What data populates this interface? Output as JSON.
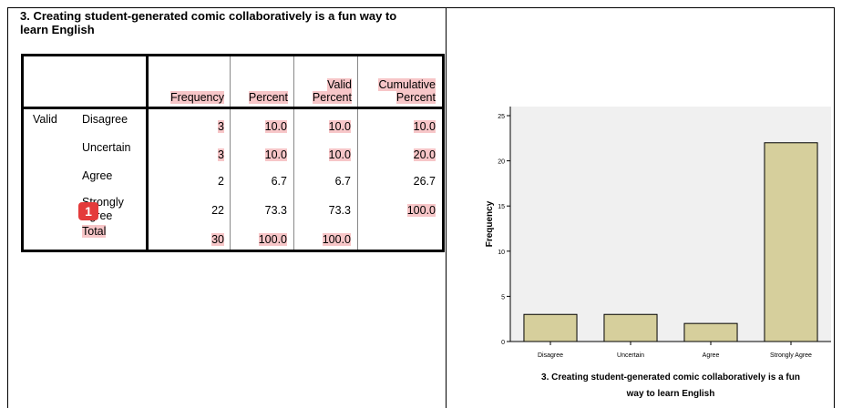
{
  "table": {
    "title_line1": "3. Creating student-generated comic collaboratively is a fun way to",
    "title_line2": "learn English",
    "headers": {
      "frequency": "Frequency",
      "percent": "Percent",
      "valid_percent_l1": "Valid",
      "valid_percent_l2": "Percent",
      "cumulative_l1": "Cumulative",
      "cumulative_l2": "Percent"
    },
    "group_label": "Valid",
    "rows": [
      {
        "label": "Disagree",
        "frequency": "3",
        "percent": "10.0",
        "valid": "10.0",
        "cumulative": "10.0"
      },
      {
        "label": "Uncertain",
        "frequency": "3",
        "percent": "10.0",
        "valid": "10.0",
        "cumulative": "20.0"
      },
      {
        "label": "Agree",
        "frequency": "2",
        "percent": "6.7",
        "valid": "6.7",
        "cumulative": "26.7"
      },
      {
        "label_l1": "Strongly",
        "label_l2": "Agree",
        "frequency": "22",
        "percent": "73.3",
        "valid": "73.3",
        "cumulative": "100.0"
      },
      {
        "label": "Total",
        "frequency": "30",
        "percent": "100.0",
        "valid": "100.0",
        "cumulative": ""
      }
    ],
    "highlight_color": "#f7c6c8"
  },
  "badge": {
    "label": "1",
    "color": "#e43b3b"
  },
  "chart_data": {
    "type": "bar",
    "categories": [
      "Disagree",
      "Uncertain",
      "Agree",
      "Strongly Agree"
    ],
    "values": [
      3,
      3,
      2,
      22
    ],
    "ylabel": "Frequency",
    "xlabel_l1": "3. Creating student-generated comic collaboratively is a fun",
    "xlabel_l2": "way to learn English",
    "ylim": [
      0,
      25
    ],
    "yticks": [
      "0",
      "5",
      "10",
      "15",
      "20",
      "25"
    ],
    "bar_color": "#d6cf9c",
    "plot_background": "#f0f0f0",
    "grid": false
  }
}
